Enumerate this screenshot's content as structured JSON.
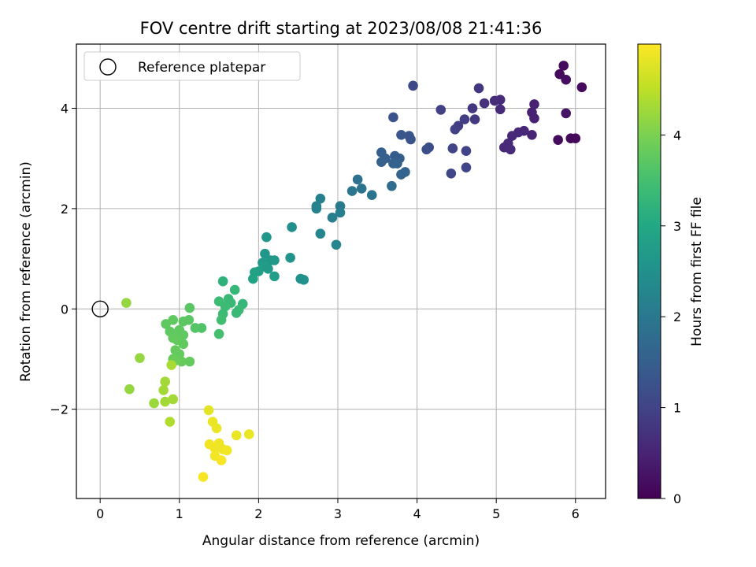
{
  "chart_data": {
    "type": "scatter",
    "title": "FOV centre drift starting at 2023/08/08 21:41:36",
    "xlabel": "Angular distance from reference (arcmin)",
    "ylabel": "Rotation from reference (arcmin)",
    "xlim": [
      -0.3,
      6.38
    ],
    "ylim": [
      -3.78,
      5.28
    ],
    "x_ticks": [
      0,
      1,
      2,
      3,
      4,
      5,
      6
    ],
    "x_tick_labels": [
      "0",
      "1",
      "2",
      "3",
      "4",
      "5",
      "6"
    ],
    "y_ticks": [
      -2,
      0,
      2,
      4
    ],
    "y_tick_labels": [
      "−2",
      "0",
      "2",
      "4"
    ],
    "grid": true,
    "legend": {
      "position": "top-left",
      "entries": [
        {
          "label": "Reference platepar",
          "marker": "open-circle"
        }
      ]
    },
    "reference_point": {
      "x": 0,
      "y": 0
    },
    "colorbar": {
      "label": "Hours from first FF file",
      "range": [
        0,
        5.0
      ],
      "ticks": [
        0,
        1,
        2,
        3,
        4
      ],
      "tick_labels": [
        "0",
        "1",
        "2",
        "3",
        "4"
      ],
      "colormap": "viridis"
    },
    "points": [
      {
        "x": 5.85,
        "y": 4.85,
        "t": 0.15
      },
      {
        "x": 5.8,
        "y": 4.68,
        "t": 0.15
      },
      {
        "x": 5.88,
        "y": 4.57,
        "t": 0.18
      },
      {
        "x": 6.08,
        "y": 4.42,
        "t": 0.15
      },
      {
        "x": 5.88,
        "y": 3.9,
        "t": 0.25
      },
      {
        "x": 5.78,
        "y": 3.37,
        "t": 0.15
      },
      {
        "x": 5.94,
        "y": 3.4,
        "t": 0.12
      },
      {
        "x": 6.0,
        "y": 3.4,
        "t": 0.1
      },
      {
        "x": 5.48,
        "y": 4.08,
        "t": 0.45
      },
      {
        "x": 5.45,
        "y": 3.92,
        "t": 0.45
      },
      {
        "x": 5.48,
        "y": 3.8,
        "t": 0.45
      },
      {
        "x": 5.45,
        "y": 3.47,
        "t": 0.5
      },
      {
        "x": 5.05,
        "y": 4.17,
        "t": 0.6
      },
      {
        "x": 4.98,
        "y": 4.15,
        "t": 0.62
      },
      {
        "x": 5.05,
        "y": 3.98,
        "t": 0.6
      },
      {
        "x": 4.85,
        "y": 4.1,
        "t": 0.7
      },
      {
        "x": 4.78,
        "y": 4.4,
        "t": 0.8
      },
      {
        "x": 5.35,
        "y": 3.55,
        "t": 0.55
      },
      {
        "x": 5.28,
        "y": 3.52,
        "t": 0.55
      },
      {
        "x": 5.2,
        "y": 3.45,
        "t": 0.58
      },
      {
        "x": 5.15,
        "y": 3.3,
        "t": 0.6
      },
      {
        "x": 5.1,
        "y": 3.22,
        "t": 0.58
      },
      {
        "x": 5.18,
        "y": 3.18,
        "t": 0.6
      },
      {
        "x": 4.7,
        "y": 4.0,
        "t": 0.8
      },
      {
        "x": 4.73,
        "y": 3.78,
        "t": 0.82
      },
      {
        "x": 4.6,
        "y": 3.78,
        "t": 0.9
      },
      {
        "x": 4.52,
        "y": 3.65,
        "t": 0.9
      },
      {
        "x": 4.48,
        "y": 3.58,
        "t": 0.95
      },
      {
        "x": 4.3,
        "y": 3.97,
        "t": 0.95
      },
      {
        "x": 4.62,
        "y": 3.15,
        "t": 1.0
      },
      {
        "x": 4.45,
        "y": 3.2,
        "t": 1.0
      },
      {
        "x": 4.62,
        "y": 2.82,
        "t": 1.0
      },
      {
        "x": 4.43,
        "y": 2.7,
        "t": 1.05
      },
      {
        "x": 3.95,
        "y": 4.45,
        "t": 1.1
      },
      {
        "x": 4.15,
        "y": 3.22,
        "t": 1.15
      },
      {
        "x": 4.12,
        "y": 3.18,
        "t": 1.2
      },
      {
        "x": 3.7,
        "y": 3.82,
        "t": 1.3
      },
      {
        "x": 3.9,
        "y": 3.45,
        "t": 1.3
      },
      {
        "x": 3.8,
        "y": 3.47,
        "t": 1.35
      },
      {
        "x": 3.92,
        "y": 3.38,
        "t": 1.3
      },
      {
        "x": 3.55,
        "y": 3.12,
        "t": 1.5
      },
      {
        "x": 3.72,
        "y": 3.05,
        "t": 1.45
      },
      {
        "x": 3.78,
        "y": 3.0,
        "t": 1.45
      },
      {
        "x": 3.6,
        "y": 3.0,
        "t": 1.5
      },
      {
        "x": 3.55,
        "y": 2.93,
        "t": 1.55
      },
      {
        "x": 3.7,
        "y": 2.9,
        "t": 1.55
      },
      {
        "x": 3.75,
        "y": 2.9,
        "t": 1.55
      },
      {
        "x": 3.85,
        "y": 2.73,
        "t": 1.6
      },
      {
        "x": 3.8,
        "y": 2.68,
        "t": 1.6
      },
      {
        "x": 3.68,
        "y": 2.45,
        "t": 1.75
      },
      {
        "x": 3.25,
        "y": 2.58,
        "t": 1.85
      },
      {
        "x": 3.3,
        "y": 2.4,
        "t": 1.9
      },
      {
        "x": 3.18,
        "y": 2.35,
        "t": 1.95
      },
      {
        "x": 3.43,
        "y": 2.27,
        "t": 1.9
      },
      {
        "x": 3.03,
        "y": 2.05,
        "t": 2.05
      },
      {
        "x": 3.03,
        "y": 1.92,
        "t": 2.1
      },
      {
        "x": 2.93,
        "y": 1.82,
        "t": 2.1
      },
      {
        "x": 2.78,
        "y": 2.2,
        "t": 2.15
      },
      {
        "x": 2.73,
        "y": 2.05,
        "t": 2.15
      },
      {
        "x": 2.73,
        "y": 2.0,
        "t": 2.2
      },
      {
        "x": 2.78,
        "y": 1.5,
        "t": 2.3
      },
      {
        "x": 2.98,
        "y": 1.28,
        "t": 2.25
      },
      {
        "x": 2.42,
        "y": 1.63,
        "t": 2.45
      },
      {
        "x": 2.4,
        "y": 1.02,
        "t": 2.55
      },
      {
        "x": 2.1,
        "y": 1.43,
        "t": 2.6
      },
      {
        "x": 2.08,
        "y": 1.1,
        "t": 2.6
      },
      {
        "x": 2.15,
        "y": 0.97,
        "t": 2.65
      },
      {
        "x": 2.2,
        "y": 0.97,
        "t": 2.65
      },
      {
        "x": 2.05,
        "y": 0.92,
        "t": 2.7
      },
      {
        "x": 2.08,
        "y": 0.85,
        "t": 2.75
      },
      {
        "x": 2.0,
        "y": 0.75,
        "t": 2.8
      },
      {
        "x": 2.12,
        "y": 0.8,
        "t": 2.7
      },
      {
        "x": 1.95,
        "y": 0.73,
        "t": 2.85
      },
      {
        "x": 1.93,
        "y": 0.6,
        "t": 2.9
      },
      {
        "x": 2.2,
        "y": 0.65,
        "t": 2.75
      },
      {
        "x": 2.53,
        "y": 0.6,
        "t": 2.55
      },
      {
        "x": 2.57,
        "y": 0.58,
        "t": 2.5
      },
      {
        "x": 1.55,
        "y": 0.55,
        "t": 3.2
      },
      {
        "x": 1.7,
        "y": 0.38,
        "t": 3.3
      },
      {
        "x": 1.62,
        "y": 0.2,
        "t": 3.35
      },
      {
        "x": 1.5,
        "y": 0.15,
        "t": 3.4
      },
      {
        "x": 1.65,
        "y": 0.12,
        "t": 3.35
      },
      {
        "x": 1.8,
        "y": 0.1,
        "t": 3.3
      },
      {
        "x": 1.58,
        "y": 0.05,
        "t": 3.4
      },
      {
        "x": 1.75,
        "y": -0.02,
        "t": 3.35
      },
      {
        "x": 1.72,
        "y": -0.08,
        "t": 3.35
      },
      {
        "x": 1.55,
        "y": -0.1,
        "t": 3.4
      },
      {
        "x": 1.53,
        "y": -0.22,
        "t": 3.45
      },
      {
        "x": 1.5,
        "y": -0.5,
        "t": 3.5
      },
      {
        "x": 1.28,
        "y": -0.38,
        "t": 3.6
      },
      {
        "x": 1.2,
        "y": -0.38,
        "t": 3.65
      },
      {
        "x": 1.13,
        "y": 0.02,
        "t": 3.7
      },
      {
        "x": 1.12,
        "y": -0.22,
        "t": 3.7
      },
      {
        "x": 1.05,
        "y": -0.25,
        "t": 3.72
      },
      {
        "x": 0.92,
        "y": -0.22,
        "t": 3.75
      },
      {
        "x": 0.83,
        "y": -0.3,
        "t": 3.75
      },
      {
        "x": 0.88,
        "y": -0.45,
        "t": 3.75
      },
      {
        "x": 0.95,
        "y": -0.5,
        "t": 3.78
      },
      {
        "x": 1.0,
        "y": -0.42,
        "t": 3.75
      },
      {
        "x": 1.05,
        "y": -0.52,
        "t": 3.75
      },
      {
        "x": 0.92,
        "y": -0.58,
        "t": 3.78
      },
      {
        "x": 0.97,
        "y": -0.62,
        "t": 3.8
      },
      {
        "x": 1.05,
        "y": -0.7,
        "t": 3.78
      },
      {
        "x": 0.95,
        "y": -0.82,
        "t": 3.8
      },
      {
        "x": 1.0,
        "y": -0.9,
        "t": 3.8
      },
      {
        "x": 0.92,
        "y": -1.0,
        "t": 3.82
      },
      {
        "x": 1.03,
        "y": -1.05,
        "t": 3.82
      },
      {
        "x": 1.13,
        "y": -1.05,
        "t": 3.8
      },
      {
        "x": 0.95,
        "y": -1.03,
        "t": 3.85
      },
      {
        "x": 0.33,
        "y": 0.12,
        "t": 4.2
      },
      {
        "x": 0.5,
        "y": -0.98,
        "t": 4.2
      },
      {
        "x": 0.9,
        "y": -1.12,
        "t": 4.35
      },
      {
        "x": 0.37,
        "y": -1.6,
        "t": 4.2
      },
      {
        "x": 0.82,
        "y": -1.45,
        "t": 4.3
      },
      {
        "x": 0.8,
        "y": -1.62,
        "t": 4.3
      },
      {
        "x": 0.68,
        "y": -1.88,
        "t": 4.25
      },
      {
        "x": 0.82,
        "y": -1.85,
        "t": 4.3
      },
      {
        "x": 0.92,
        "y": -1.8,
        "t": 4.3
      },
      {
        "x": 0.88,
        "y": -2.25,
        "t": 4.4
      },
      {
        "x": 1.37,
        "y": -2.02,
        "t": 4.8
      },
      {
        "x": 1.42,
        "y": -2.25,
        "t": 4.85
      },
      {
        "x": 1.47,
        "y": -2.38,
        "t": 4.85
      },
      {
        "x": 1.38,
        "y": -2.7,
        "t": 4.9
      },
      {
        "x": 1.5,
        "y": -2.68,
        "t": 4.9
      },
      {
        "x": 1.45,
        "y": -2.78,
        "t": 4.9
      },
      {
        "x": 1.55,
        "y": -2.8,
        "t": 4.9
      },
      {
        "x": 1.6,
        "y": -2.82,
        "t": 4.92
      },
      {
        "x": 1.72,
        "y": -2.52,
        "t": 4.85
      },
      {
        "x": 1.88,
        "y": -2.5,
        "t": 4.85
      },
      {
        "x": 1.45,
        "y": -2.93,
        "t": 4.92
      },
      {
        "x": 1.53,
        "y": -3.02,
        "t": 4.95
      },
      {
        "x": 1.3,
        "y": -3.35,
        "t": 4.95
      }
    ]
  }
}
